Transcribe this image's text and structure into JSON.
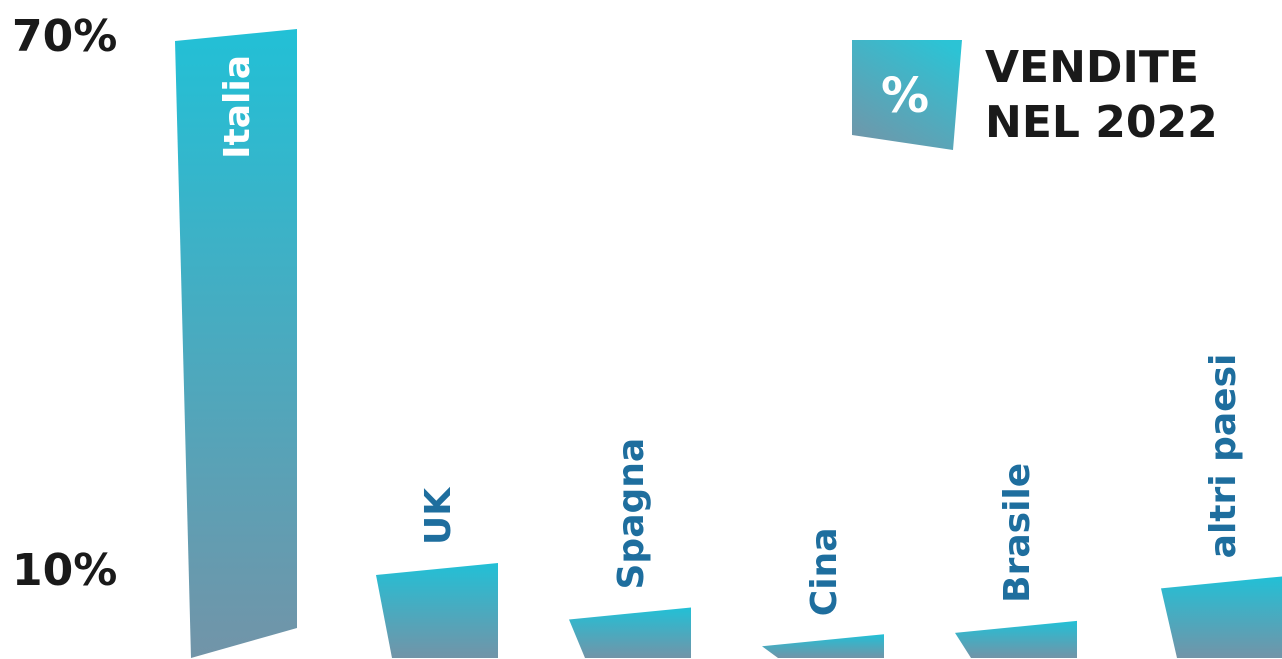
{
  "chart_data": {
    "type": "bar",
    "title": [
      "VENDITE",
      "NEL 2022"
    ],
    "badge_symbol": "%",
    "categories": [
      "Italia",
      "UK",
      "Spagna",
      "Cina",
      "Brasile",
      "altri paesi"
    ],
    "values": [
      70,
      10,
      5,
      2,
      3.5,
      8.5
    ],
    "ytick_labels": [
      {
        "label": "70%",
        "value": 70
      },
      {
        "label": "10%",
        "value": 10
      }
    ],
    "ylim": [
      0,
      70
    ],
    "grid": false,
    "legend": "none",
    "colors": {
      "bar_top": "#22c0d6",
      "bar_bottom": "#7294a8",
      "label_on_bar": "#ffffff",
      "label_above_bar": "#1e6e9e",
      "badge_top": "#2cc3d5",
      "badge_bottom": "#6f97aa",
      "text": "#1a1a1a"
    }
  }
}
